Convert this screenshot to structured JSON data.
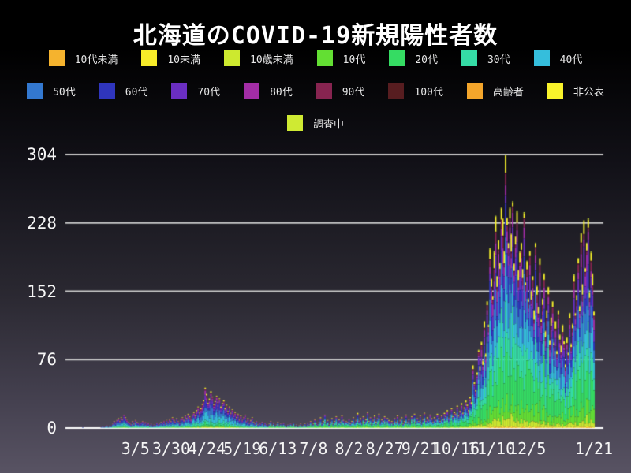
{
  "title": "北海道のCOVID-19新規陽性者数",
  "colors": {
    "background_top": "#000000",
    "background_bottom": "#585363",
    "grid_line": "#c9c9c9",
    "zero_axis_line": "#ffffff",
    "text": "#ffffff"
  },
  "legend": {
    "rows": [
      [
        {
          "label": "10代未満",
          "color": "#F5B32E"
        },
        {
          "label": "10未満",
          "color": "#F7EC29"
        },
        {
          "label": "10歳未満",
          "color": "#CDE92F"
        },
        {
          "label": "10代",
          "color": "#63DF33"
        },
        {
          "label": "20代",
          "color": "#35DC63"
        },
        {
          "label": "30代",
          "color": "#35DCA6"
        },
        {
          "label": "40代",
          "color": "#35BEDC"
        }
      ],
      [
        {
          "label": "50代",
          "color": "#3378D0"
        },
        {
          "label": "60代",
          "color": "#2F35BD"
        },
        {
          "label": "70代",
          "color": "#6B2EC2"
        },
        {
          "label": "80代",
          "color": "#A32DA6"
        },
        {
          "label": "90代",
          "color": "#872450"
        },
        {
          "label": "100代",
          "color": "#571D20"
        },
        {
          "label": "高齢者",
          "color": "#F3A52B"
        },
        {
          "label": "非公表",
          "color": "#F9F32B"
        }
      ],
      [
        {
          "label": "調査中",
          "color": "#CFEA33"
        }
      ]
    ]
  },
  "chart_data": {
    "type": "bar",
    "subtype": "stacked-daily",
    "title": "北海道のCOVID-19新規陽性者数",
    "xlabel": "",
    "ylabel": "",
    "ylim": [
      0,
      304
    ],
    "y_ticks": [
      0,
      76,
      152,
      228,
      304
    ],
    "grid": "horizontal",
    "legend_position": "top",
    "x_start_date": "2020-01-28",
    "x_end_date": "2021-01-21",
    "x_tick_labels": [
      "3/5",
      "3/30",
      "4/24",
      "5/19",
      "6/13",
      "7/8",
      "8/2",
      "8/27",
      "9/21",
      "10/16",
      "11/10",
      "12/5",
      "1/21"
    ],
    "x_tick_day_index": [
      37,
      62,
      87,
      112,
      137,
      162,
      187,
      212,
      237,
      262,
      287,
      312,
      359
    ],
    "stack_order": [
      "10代未満",
      "10未満",
      "10歳未満",
      "10代",
      "20代",
      "30代",
      "40代",
      "50代",
      "60代",
      "70代",
      "80代",
      "90代",
      "100代",
      "高齢者",
      "非公表",
      "調査中"
    ],
    "stack_colors": [
      "#F5B32E",
      "#F7EC29",
      "#CDE92F",
      "#63DF33",
      "#35DC63",
      "#35DCA6",
      "#35BEDC",
      "#3378D0",
      "#2F35BD",
      "#6B2EC2",
      "#A32DA6",
      "#872450",
      "#571D20",
      "#F3A52B",
      "#F9F32B",
      "#CFEA33"
    ],
    "stack_fractions": [
      0.004,
      0.004,
      0.032,
      0.075,
      0.21,
      0.14,
      0.125,
      0.115,
      0.085,
      0.07,
      0.055,
      0.03,
      0.003,
      0.002,
      0.047,
      0.003
    ],
    "peak": {
      "date": "11/20",
      "value": 304
    },
    "daily_totals": [
      1,
      0,
      0,
      0,
      0,
      0,
      0,
      0,
      0,
      0,
      0,
      0,
      0,
      1,
      2,
      1,
      2,
      3,
      1,
      3,
      2,
      5,
      8,
      6,
      9,
      11,
      8,
      12,
      10,
      15,
      12,
      9,
      7,
      6,
      4,
      8,
      5,
      9,
      7,
      6,
      4,
      6,
      8,
      5,
      7,
      4,
      6,
      3,
      5,
      2,
      4,
      3,
      6,
      4,
      5,
      7,
      6,
      8,
      5,
      9,
      7,
      10,
      8,
      12,
      9,
      7,
      11,
      8,
      6,
      10,
      12,
      9,
      14,
      11,
      16,
      13,
      10,
      15,
      18,
      14,
      20,
      24,
      17,
      22,
      27,
      31,
      45,
      38,
      28,
      33,
      41,
      35,
      26,
      30,
      36,
      29,
      33,
      24,
      28,
      31,
      22,
      26,
      19,
      24,
      17,
      21,
      15,
      18,
      12,
      16,
      10,
      14,
      9,
      12,
      15,
      8,
      11,
      6,
      9,
      12,
      7,
      5,
      8,
      4,
      6,
      5,
      7,
      3,
      6,
      4,
      2,
      5,
      8,
      3,
      6,
      2,
      4,
      7,
      3,
      5,
      2,
      6,
      3,
      1,
      4,
      2,
      5,
      3,
      6,
      2,
      4,
      1,
      3,
      5,
      2,
      3,
      5,
      2,
      6,
      4,
      8,
      3,
      5,
      10,
      6,
      4,
      7,
      12,
      5,
      8,
      15,
      6,
      9,
      4,
      7,
      11,
      5,
      8,
      13,
      6,
      10,
      7,
      14,
      9,
      6,
      8,
      7,
      10,
      5,
      8,
      12,
      6,
      9,
      17,
      8,
      11,
      6,
      13,
      7,
      10,
      18,
      8,
      12,
      5,
      9,
      14,
      7,
      11,
      16,
      6,
      10,
      8,
      13,
      7,
      11,
      9,
      6,
      8,
      5,
      11,
      7,
      14,
      6,
      9,
      12,
      5,
      8,
      15,
      7,
      10,
      6,
      13,
      9,
      16,
      7,
      11,
      8,
      14,
      6,
      10,
      17,
      8,
      12,
      9,
      15,
      11,
      7,
      12,
      9,
      16,
      11,
      8,
      14,
      10,
      17,
      13,
      20,
      11,
      15,
      22,
      13,
      18,
      16,
      25,
      14,
      19,
      28,
      17,
      23,
      31,
      26,
      20,
      35,
      29,
      70,
      51,
      42,
      62,
      87,
      69,
      96,
      75,
      119,
      83,
      141,
      115,
      200,
      166,
      147,
      197,
      236,
      169,
      209,
      184,
      245,
      233,
      197,
      304,
      234,
      206,
      245,
      216,
      252,
      183,
      213,
      241,
      176,
      196,
      206,
      177,
      240,
      162,
      186,
      144,
      197,
      152,
      169,
      131,
      206,
      158,
      135,
      189,
      121,
      144,
      172,
      108,
      131,
      157,
      98,
      123,
      141,
      95,
      119,
      86,
      131,
      104,
      92,
      115,
      97,
      71,
      101,
      84,
      128,
      94,
      116,
      171,
      128,
      148,
      189,
      136,
      217,
      160,
      231,
      178,
      206,
      233,
      151,
      196,
      172,
      130
    ]
  }
}
